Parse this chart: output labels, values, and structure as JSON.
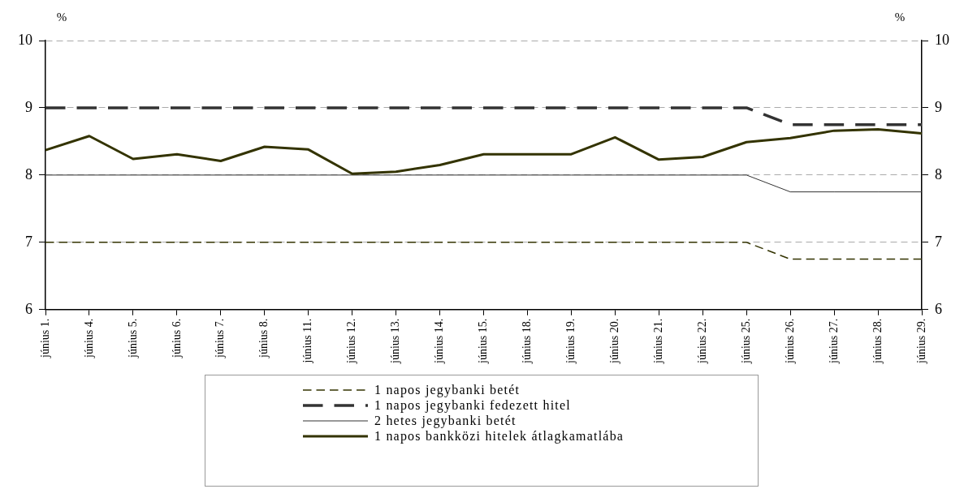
{
  "chart_data": {
    "type": "line",
    "ylabel": "%",
    "y2label": "%",
    "categories": [
      "június 1.",
      "június 4.",
      "június 5.",
      "június 6.",
      "június 7.",
      "június 8.",
      "június 11.",
      "június 12.",
      "június 13.",
      "június 14.",
      "június 15.",
      "június 18.",
      "június 19.",
      "június 20.",
      "június 21.",
      "június 22.",
      "június 25.",
      "június 26.",
      "június 27.",
      "június 28.",
      "június 29."
    ],
    "series": [
      {
        "name": "1 napos jegybanki betét",
        "color": "#333300",
        "line_style": "dashed",
        "values": [
          7,
          7,
          7,
          7,
          7,
          7,
          7,
          7,
          7,
          7,
          7,
          7,
          7,
          7,
          7,
          7,
          7,
          6.75,
          6.75,
          6.75,
          6.75
        ]
      },
      {
        "name": "1 napos jegybanki fedezett hitel",
        "color": "#333333",
        "line_style": "dashed",
        "values": [
          9,
          9,
          9,
          9,
          9,
          9,
          9,
          9,
          9,
          9,
          9,
          9,
          9,
          9,
          9,
          9,
          9,
          8.75,
          8.75,
          8.75,
          8.75
        ]
      },
      {
        "name": "2 hetes jegybanki betét",
        "color": "#333333",
        "line_style": "solid",
        "values": [
          8,
          8,
          8,
          8,
          8,
          8,
          8,
          8,
          8,
          8,
          8,
          8,
          8,
          8,
          8,
          8,
          8,
          7.75,
          7.75,
          7.75,
          7.75
        ]
      },
      {
        "name": "1 napos bankközi hitelek átlagkamatlába",
        "color": "#333300",
        "line_style": "solid",
        "values": [
          8.37,
          8.58,
          8.24,
          8.31,
          8.21,
          8.42,
          8.38,
          8.02,
          8.05,
          8.15,
          8.31,
          8.31,
          8.31,
          8.56,
          8.23,
          8.27,
          8.49,
          8.55,
          8.66,
          8.68,
          8.62
        ]
      }
    ],
    "ylim": [
      6,
      10
    ],
    "yticks": [
      6,
      7,
      8,
      9,
      10
    ],
    "y2lim": [
      6,
      10
    ],
    "y2ticks": [
      6,
      7,
      8,
      9,
      10
    ],
    "grid": "y",
    "legend": "bottom",
    "marker": "none"
  }
}
